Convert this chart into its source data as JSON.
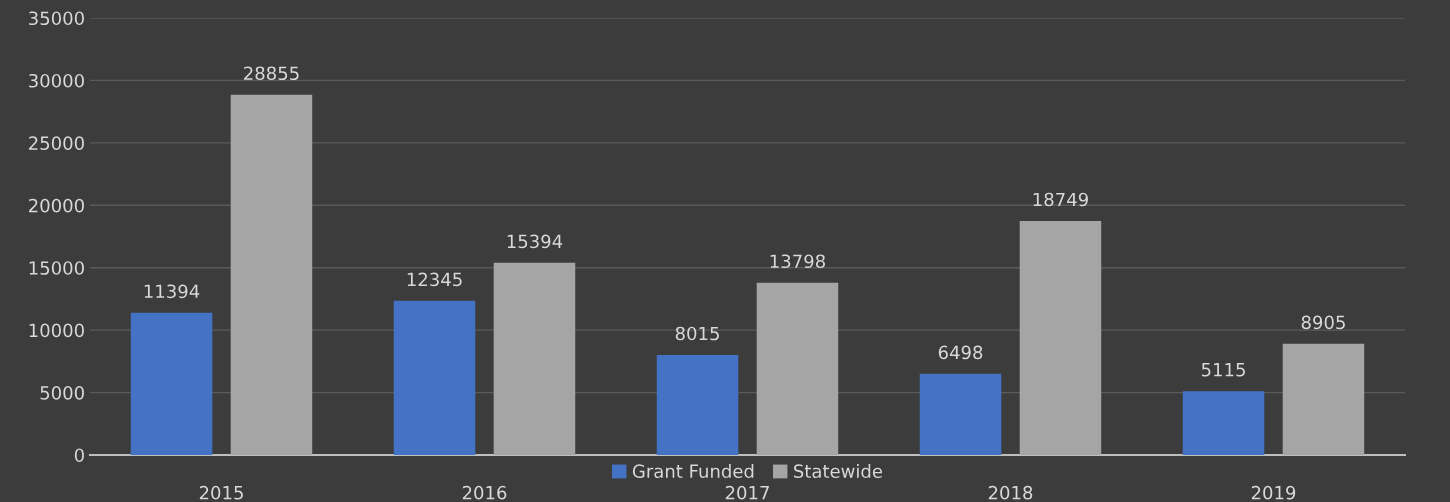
{
  "chart_data": {
    "type": "bar",
    "categories": [
      "2015",
      "2016",
      "2017",
      "2018",
      "2019"
    ],
    "series": [
      {
        "name": "Grant Funded",
        "color": "#4472c4",
        "values": [
          11394,
          12345,
          8015,
          6498,
          5115
        ]
      },
      {
        "name": "Statewide",
        "color": "#a5a5a5",
        "values": [
          28855,
          15394,
          13798,
          18749,
          8905
        ]
      }
    ],
    "ylim": [
      0,
      35000
    ],
    "yticks": [
      0,
      5000,
      10000,
      15000,
      20000,
      25000,
      30000,
      35000
    ],
    "grid": "y",
    "legend": "bottom",
    "data_labels": true
  }
}
